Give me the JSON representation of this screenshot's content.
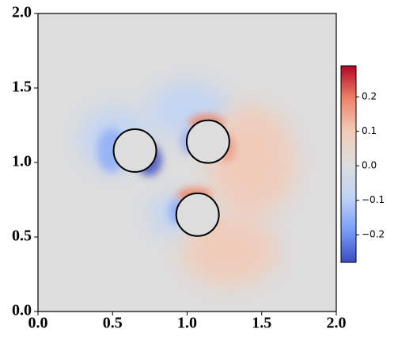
{
  "chart_data": {
    "type": "field",
    "xlim": [
      0,
      2
    ],
    "ylim": [
      0,
      2
    ],
    "xticks": [
      {
        "value": 0,
        "label": "0.0"
      },
      0.5,
      {
        "value": 1,
        "label": "1.0"
      },
      1.5,
      {
        "value": 2,
        "label": "2.0"
      }
    ],
    "yticks": [
      {
        "value": 0,
        "label": "0.0"
      },
      0.5,
      {
        "value": 1,
        "label": "1.0"
      },
      1.5,
      {
        "value": 2,
        "label": "2.0"
      }
    ],
    "circles": [
      {
        "x": 0.65,
        "y": 1.08,
        "r": 0.143
      },
      {
        "x": 1.14,
        "y": 1.14,
        "r": 0.143
      },
      {
        "x": 1.07,
        "y": 0.65,
        "r": 0.143
      }
    ],
    "clim": [
      -0.28,
      0.29
    ],
    "cticks": [
      {
        "value": -0.2,
        "label": "−0.2"
      },
      {
        "value": -0.1,
        "label": "−0.1"
      },
      {
        "value": 0,
        "label": "0.0"
      },
      0.1,
      0.2
    ],
    "colormap": [
      "#3b4cc0",
      "#7b9ff9",
      "#c0d4f5",
      "#dddddd",
      "#f2cbb7",
      "#ee8468",
      "#b40426"
    ]
  }
}
